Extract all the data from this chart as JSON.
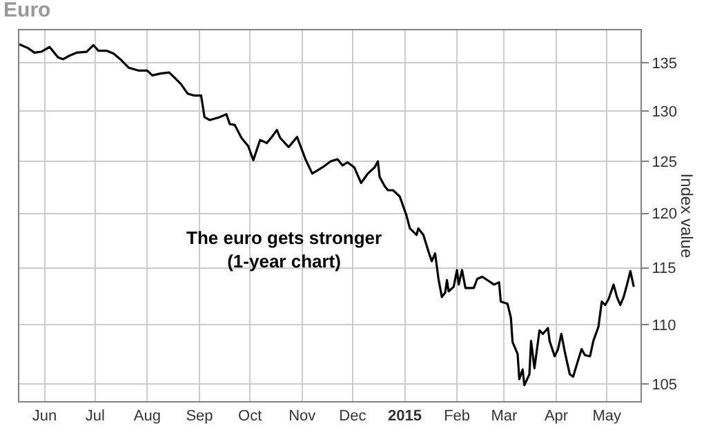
{
  "chart_data": {
    "type": "line",
    "title": "Euro",
    "ylabel": "Index value",
    "annotations": [
      "The euro gets stronger\n(1-year chart)"
    ],
    "log": true,
    "grid": true,
    "legend": false,
    "marker": "none",
    "line_style": "solid",
    "ylim": [
      103.6,
      138.5
    ],
    "yticks": [
      105,
      110,
      115,
      120,
      125,
      130,
      135
    ],
    "xlim": [
      "2014-05-17",
      "2015-05-21"
    ],
    "xticks": [
      {
        "value": "2014-06-01",
        "label": "Jun"
      },
      {
        "value": "2014-07-01",
        "label": "Jul"
      },
      {
        "value": "2014-08-01",
        "label": "Aug"
      },
      {
        "value": "2014-09-01",
        "label": "Sep"
      },
      {
        "value": "2014-10-01",
        "label": "Oct"
      },
      {
        "value": "2014-11-01",
        "label": "Nov"
      },
      {
        "value": "2014-12-01",
        "label": "Dec"
      },
      {
        "value": "2015-01-01",
        "label": "2015"
      },
      {
        "value": "2015-02-01",
        "label": "Feb"
      },
      {
        "value": "2015-03-01",
        "label": "Mar"
      },
      {
        "value": "2015-04-01",
        "label": "Apr"
      },
      {
        "value": "2015-05-01",
        "label": "May"
      }
    ],
    "x": [
      "2014-05-17",
      "2014-05-22",
      "2014-05-26",
      "2014-05-30",
      "2014-06-04",
      "2014-06-09",
      "2014-06-12",
      "2014-06-16",
      "2014-06-20",
      "2014-06-26",
      "2014-06-30",
      "2014-07-03",
      "2014-07-08",
      "2014-07-12",
      "2014-07-16",
      "2014-07-21",
      "2014-07-27",
      "2014-08-01",
      "2014-08-04",
      "2014-08-09",
      "2014-08-14",
      "2014-08-17",
      "2014-08-21",
      "2014-08-25",
      "2014-08-29",
      "2014-09-02",
      "2014-09-04",
      "2014-09-07",
      "2014-09-13",
      "2014-09-17",
      "2014-09-19",
      "2014-09-22",
      "2014-09-26",
      "2014-09-30",
      "2014-10-03",
      "2014-10-07",
      "2014-10-11",
      "2014-10-14",
      "2014-10-17",
      "2014-10-19",
      "2014-10-24",
      "2014-10-29",
      "2014-11-03",
      "2014-11-07",
      "2014-11-13",
      "2014-11-18",
      "2014-11-22",
      "2014-11-25",
      "2014-11-28",
      "2014-12-02",
      "2014-12-06",
      "2014-12-10",
      "2014-12-12",
      "2014-12-14",
      "2014-12-16",
      "2014-12-17",
      "2014-12-20",
      "2014-12-22",
      "2014-12-25",
      "2014-12-29",
      "2015-01-02",
      "2015-01-04",
      "2015-01-08",
      "2015-01-09",
      "2015-01-12",
      "2015-01-15",
      "2015-01-17",
      "2015-01-19",
      "2015-01-21",
      "2015-01-23",
      "2015-01-25",
      "2015-01-26",
      "2015-01-27",
      "2015-01-30",
      "2015-02-01",
      "2015-02-02",
      "2015-02-04",
      "2015-02-06",
      "2015-02-11",
      "2015-02-13",
      "2015-02-16",
      "2015-02-20",
      "2015-02-23",
      "2015-02-26",
      "2015-02-27",
      "2015-03-03",
      "2015-03-05",
      "2015-03-06",
      "2015-03-09",
      "2015-03-10",
      "2015-03-12",
      "2015-03-13",
      "2015-03-16",
      "2015-03-17",
      "2015-03-19",
      "2015-03-22",
      "2015-03-24",
      "2015-03-27",
      "2015-03-28",
      "2015-03-31",
      "2015-04-02",
      "2015-04-04",
      "2015-04-06",
      "2015-04-09",
      "2015-04-11",
      "2015-04-14",
      "2015-04-16",
      "2015-04-18",
      "2015-04-21",
      "2015-04-23",
      "2015-04-26",
      "2015-04-28",
      "2015-04-30",
      "2015-05-02",
      "2015-05-05",
      "2015-05-07",
      "2015-05-09",
      "2015-05-11",
      "2015-05-13",
      "2015-05-15",
      "2015-05-17"
    ],
    "series": [
      {
        "color": "#000000",
        "values": [
          137.0,
          136.6,
          136.1,
          136.2,
          136.7,
          135.6,
          135.4,
          135.8,
          136.1,
          136.2,
          136.9,
          136.3,
          136.3,
          136.0,
          135.4,
          134.5,
          134.2,
          134.2,
          133.7,
          133.9,
          134.0,
          133.5,
          132.8,
          131.8,
          131.6,
          131.6,
          129.4,
          129.1,
          129.4,
          129.7,
          128.7,
          128.6,
          127.3,
          126.5,
          125.1,
          127.1,
          126.8,
          127.4,
          128.1,
          127.3,
          126.4,
          127.4,
          125.2,
          123.8,
          124.4,
          125.0,
          125.2,
          124.6,
          124.9,
          124.4,
          122.9,
          123.8,
          124.1,
          124.4,
          125.0,
          123.5,
          122.6,
          122.2,
          122.2,
          121.6,
          119.8,
          118.6,
          118.0,
          118.6,
          118.0,
          116.5,
          115.6,
          116.3,
          114.0,
          112.4,
          112.8,
          113.9,
          112.9,
          113.3,
          114.8,
          113.5,
          114.8,
          113.2,
          113.2,
          114.0,
          114.2,
          113.8,
          113.5,
          113.7,
          112.0,
          111.8,
          110.6,
          108.5,
          107.5,
          105.4,
          106.2,
          104.9,
          105.8,
          108.6,
          106.3,
          109.5,
          109.2,
          109.7,
          108.6,
          107.3,
          107.9,
          109.2,
          107.7,
          105.8,
          105.6,
          107.0,
          107.9,
          107.4,
          107.3,
          108.6,
          109.8,
          112.0,
          111.7,
          112.2,
          113.5,
          112.4,
          111.7,
          112.4,
          113.5,
          114.7,
          113.3
        ]
      }
    ]
  }
}
